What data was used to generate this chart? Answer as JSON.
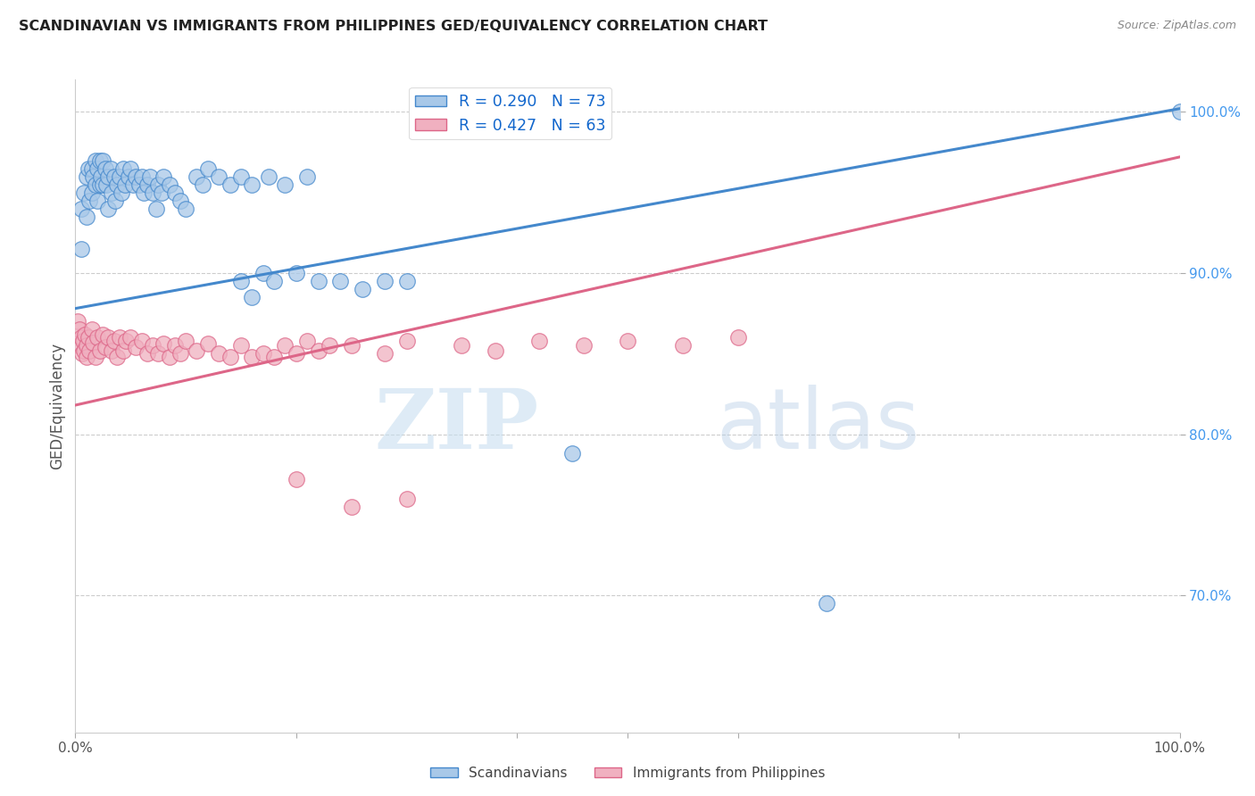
{
  "title": "SCANDINAVIAN VS IMMIGRANTS FROM PHILIPPINES GED/EQUIVALENCY CORRELATION CHART",
  "source": "Source: ZipAtlas.com",
  "ylabel": "GED/Equivalency",
  "xlim": [
    0.0,
    1.0
  ],
  "ylim": [
    0.615,
    1.02
  ],
  "r_scandinavian": 0.29,
  "n_scandinavian": 73,
  "r_philippines": 0.427,
  "n_philippines": 63,
  "color_scandinavian": "#a8c8e8",
  "color_philippines": "#f0b0c0",
  "color_line_scandinavian": "#4488cc",
  "color_line_philippines": "#dd6688",
  "legend_labels": [
    "Scandinavians",
    "Immigrants from Philippines"
  ],
  "watermark_zip": "ZIP",
  "watermark_atlas": "atlas",
  "line_scand_x0": 0.0,
  "line_scand_y0": 0.878,
  "line_scand_x1": 1.0,
  "line_scand_y1": 1.002,
  "line_phil_x0": 0.0,
  "line_phil_y0": 0.818,
  "line_phil_x1": 1.0,
  "line_phil_y1": 0.972,
  "scandinavian_x": [
    0.005,
    0.005,
    0.008,
    0.01,
    0.01,
    0.012,
    0.013,
    0.015,
    0.015,
    0.016,
    0.018,
    0.018,
    0.02,
    0.02,
    0.022,
    0.022,
    0.023,
    0.025,
    0.025,
    0.027,
    0.028,
    0.03,
    0.03,
    0.032,
    0.033,
    0.035,
    0.036,
    0.038,
    0.04,
    0.042,
    0.043,
    0.045,
    0.048,
    0.05,
    0.052,
    0.055,
    0.058,
    0.06,
    0.062,
    0.065,
    0.068,
    0.07,
    0.073,
    0.075,
    0.078,
    0.08,
    0.085,
    0.09,
    0.095,
    0.1,
    0.11,
    0.115,
    0.12,
    0.13,
    0.14,
    0.15,
    0.16,
    0.175,
    0.19,
    0.21,
    0.15,
    0.16,
    0.17,
    0.18,
    0.2,
    0.22,
    0.24,
    0.26,
    0.28,
    0.3,
    0.45,
    0.68,
    1.0
  ],
  "scandinavian_y": [
    0.94,
    0.915,
    0.95,
    0.96,
    0.935,
    0.965,
    0.945,
    0.965,
    0.95,
    0.96,
    0.97,
    0.955,
    0.965,
    0.945,
    0.97,
    0.955,
    0.96,
    0.97,
    0.955,
    0.965,
    0.955,
    0.96,
    0.94,
    0.965,
    0.95,
    0.96,
    0.945,
    0.955,
    0.96,
    0.95,
    0.965,
    0.955,
    0.96,
    0.965,
    0.955,
    0.96,
    0.955,
    0.96,
    0.95,
    0.955,
    0.96,
    0.95,
    0.94,
    0.955,
    0.95,
    0.96,
    0.955,
    0.95,
    0.945,
    0.94,
    0.96,
    0.955,
    0.965,
    0.96,
    0.955,
    0.96,
    0.955,
    0.96,
    0.955,
    0.96,
    0.895,
    0.885,
    0.9,
    0.895,
    0.9,
    0.895,
    0.895,
    0.89,
    0.895,
    0.895,
    0.788,
    0.695,
    1.0
  ],
  "philippines_x": [
    0.002,
    0.003,
    0.004,
    0.005,
    0.006,
    0.007,
    0.008,
    0.009,
    0.01,
    0.01,
    0.012,
    0.013,
    0.015,
    0.016,
    0.018,
    0.02,
    0.022,
    0.025,
    0.027,
    0.03,
    0.033,
    0.035,
    0.038,
    0.04,
    0.043,
    0.046,
    0.05,
    0.055,
    0.06,
    0.065,
    0.07,
    0.075,
    0.08,
    0.085,
    0.09,
    0.095,
    0.1,
    0.11,
    0.12,
    0.13,
    0.14,
    0.15,
    0.16,
    0.17,
    0.18,
    0.19,
    0.2,
    0.21,
    0.22,
    0.23,
    0.25,
    0.28,
    0.3,
    0.35,
    0.38,
    0.42,
    0.46,
    0.5,
    0.55,
    0.6,
    0.2,
    0.25,
    0.3
  ],
  "philippines_y": [
    0.87,
    0.855,
    0.865,
    0.86,
    0.85,
    0.858,
    0.852,
    0.862,
    0.855,
    0.848,
    0.86,
    0.852,
    0.865,
    0.857,
    0.848,
    0.86,
    0.852,
    0.862,
    0.854,
    0.86,
    0.852,
    0.858,
    0.848,
    0.86,
    0.852,
    0.858,
    0.86,
    0.854,
    0.858,
    0.85,
    0.855,
    0.85,
    0.856,
    0.848,
    0.855,
    0.85,
    0.858,
    0.852,
    0.856,
    0.85,
    0.848,
    0.855,
    0.848,
    0.85,
    0.848,
    0.855,
    0.85,
    0.858,
    0.852,
    0.855,
    0.855,
    0.85,
    0.858,
    0.855,
    0.852,
    0.858,
    0.855,
    0.858,
    0.855,
    0.86,
    0.772,
    0.755,
    0.76
  ]
}
